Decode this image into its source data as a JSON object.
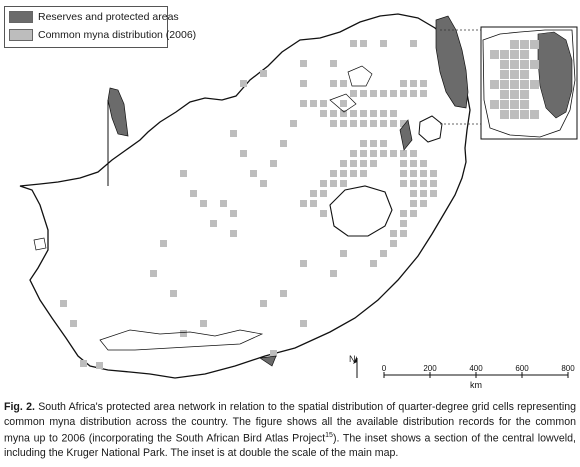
{
  "legend": {
    "items": [
      {
        "label": "Reserves and protected areas",
        "color": "#6b6b6b"
      },
      {
        "label": "Common myna distribution (2006)",
        "color": "#bdbdbd"
      }
    ]
  },
  "scale_bar": {
    "ticks": [
      "0",
      "200",
      "400",
      "600",
      "800"
    ],
    "unit": "km"
  },
  "north_label": "N",
  "caption": {
    "fig_label": "Fig.",
    "fig_number": "2.",
    "text_part1": "South Africa's protected area network in relation to the spatial distribution of quarter-degree grid cells representing common myna distribution across the country. The figure shows all the available distribution records for the common myna up to 2006 (incorporating the South African Bird Atlas Project",
    "superscript": "15",
    "text_part2": "). The inset shows a section of the central lowveld, including the Kruger National Park. The inset is at double the scale of the main map."
  },
  "colors": {
    "reserve": "#6b6b6b",
    "distribution": "#bdbdbd",
    "outline": "#111111"
  }
}
